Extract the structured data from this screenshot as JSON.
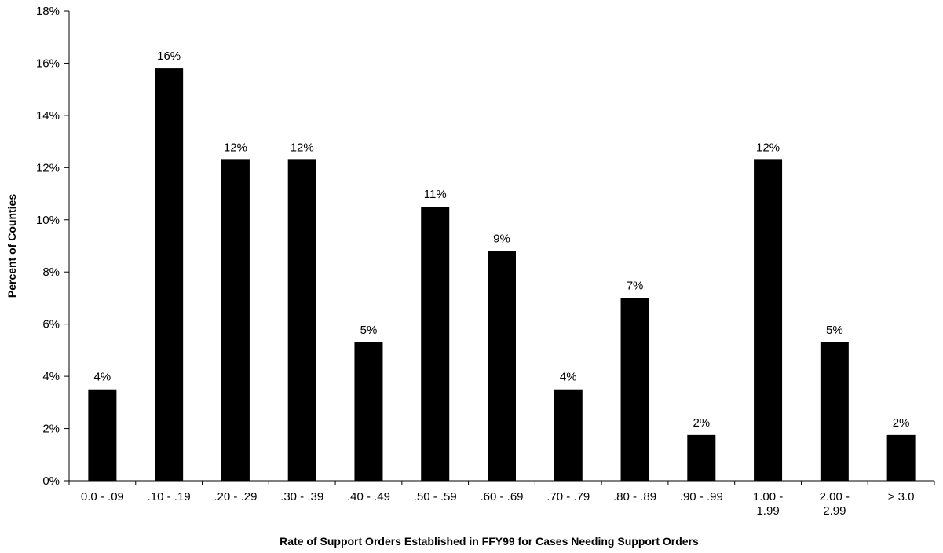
{
  "chart_data": {
    "type": "bar",
    "title": "",
    "xlabel": "Rate of Support Orders Established in FFY99 for Cases Needing Support Orders",
    "ylabel": "Percent of Counties",
    "ylim": [
      0,
      18
    ],
    "y_ticks": [
      "0%",
      "2%",
      "4%",
      "6%",
      "8%",
      "10%",
      "12%",
      "14%",
      "16%",
      "18%"
    ],
    "categories": [
      [
        "0.0 - .09"
      ],
      [
        ".10 - .19"
      ],
      [
        ".20 - .29"
      ],
      [
        ".30 - .39"
      ],
      [
        ".40 - .49"
      ],
      [
        ".50 - .59"
      ],
      [
        ".60 - .69"
      ],
      [
        ".70 - .79"
      ],
      [
        ".80 - .89"
      ],
      [
        ".90 - .99"
      ],
      [
        "1.00 -",
        "1.99"
      ],
      [
        "2.00 -",
        "2.99"
      ],
      [
        "> 3.0"
      ]
    ],
    "values": [
      3.5,
      15.8,
      12.3,
      12.3,
      5.3,
      10.5,
      8.8,
      3.5,
      7.0,
      1.75,
      12.3,
      5.3,
      1.75
    ],
    "data_labels": [
      "4%",
      "16%",
      "12%",
      "12%",
      "5%",
      "11%",
      "9%",
      "4%",
      "7%",
      "2%",
      "12%",
      "5%",
      "2%"
    ],
    "bar_color": "#000000",
    "grid": false,
    "legend": "none"
  }
}
